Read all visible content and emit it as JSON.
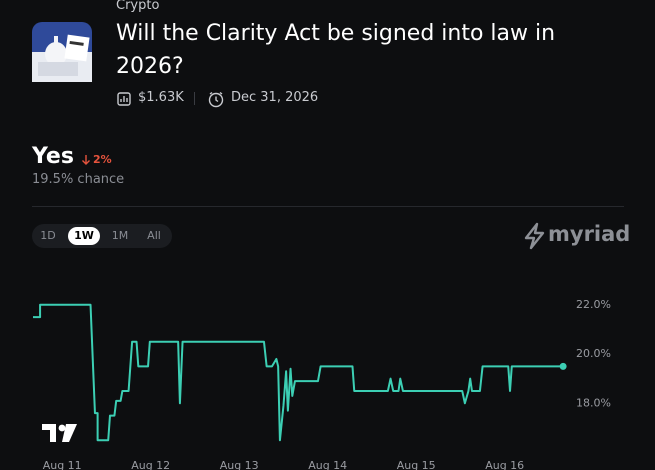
{
  "header": {
    "category": "Crypto",
    "title": "Will the Clarity Act be signed into law in 2026?",
    "volume": "$1.63K",
    "end_date": "Dec 31, 2026"
  },
  "outcome": {
    "name": "Yes",
    "change": "2%",
    "chance": "19.5% chance"
  },
  "range_tabs": [
    "1D",
    "1W",
    "1M",
    "All"
  ],
  "brand": "myriad",
  "chart_data": {
    "type": "line",
    "color": "#3ccfb4",
    "x": [
      10.67,
      10.75,
      10.75,
      11.32,
      11.37,
      11.4,
      11.4,
      11.52,
      11.54,
      11.59,
      11.61,
      11.66,
      11.68,
      11.75,
      11.79,
      11.84,
      11.86,
      11.97,
      11.99,
      12.31,
      12.33,
      12.36,
      13.28,
      13.31,
      13.37,
      13.42,
      13.44,
      13.46,
      13.5,
      13.53,
      13.55,
      13.58,
      13.6,
      13.63,
      13.89,
      13.92,
      14.28,
      14.3,
      14.68,
      14.71,
      14.74,
      14.8,
      14.82,
      14.85,
      15.52,
      15.55,
      15.59,
      15.61,
      15.63,
      15.72,
      15.75,
      16.04,
      16.06,
      16.08,
      16.66
    ],
    "values": [
      21.5,
      21.5,
      22.0,
      22.0,
      17.6,
      17.6,
      16.5,
      16.5,
      17.5,
      17.5,
      18.1,
      18.1,
      18.5,
      18.5,
      20.5,
      20.5,
      19.5,
      19.5,
      20.5,
      20.5,
      18.0,
      20.5,
      20.5,
      19.5,
      19.5,
      19.8,
      19.5,
      16.5,
      17.9,
      19.3,
      17.7,
      19.4,
      18.3,
      18.9,
      18.9,
      19.5,
      19.5,
      18.5,
      18.5,
      19.0,
      18.5,
      18.5,
      19.0,
      18.5,
      18.5,
      18.0,
      18.5,
      19.0,
      18.5,
      18.5,
      19.5,
      19.5,
      18.5,
      19.5,
      19.5
    ],
    "xlim": [
      10.67,
      16.67
    ],
    "xticks": [
      {
        "value": 11,
        "label": "Aug 11"
      },
      {
        "value": 12,
        "label": "Aug 12"
      },
      {
        "value": 13,
        "label": "Aug 13"
      },
      {
        "value": 14,
        "label": "Aug 14"
      },
      {
        "value": 15,
        "label": "Aug 15"
      },
      {
        "value": 16,
        "label": "Aug 16"
      }
    ],
    "ylim": [
      15.9,
      22.6
    ],
    "yticks": [
      {
        "value": 18,
        "label": "18.0%"
      },
      {
        "value": 20,
        "label": "20.0%"
      },
      {
        "value": 22,
        "label": "22.0%"
      }
    ]
  }
}
